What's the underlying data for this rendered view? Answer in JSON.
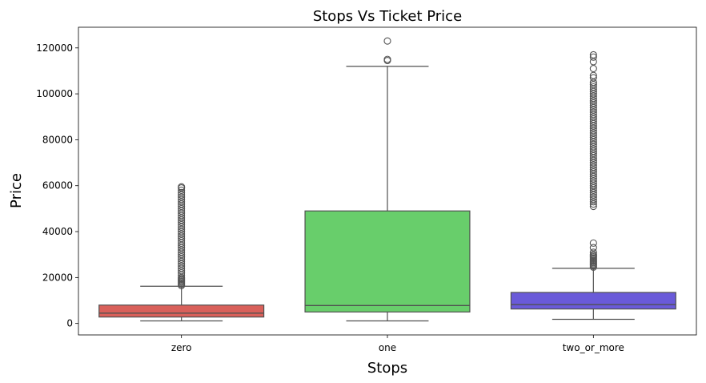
{
  "chart_data": {
    "type": "box",
    "title": "Stops Vs Ticket Price",
    "xlabel": "Stops",
    "ylabel": "Price",
    "ylim": [
      -5000,
      129000
    ],
    "yticks": [
      0,
      20000,
      40000,
      60000,
      80000,
      100000,
      120000
    ],
    "ytick_labels": [
      "0",
      "20000",
      "40000",
      "60000",
      "80000",
      "100000",
      "120000"
    ],
    "grid": false,
    "categories": [
      "zero",
      "one",
      "two_or_more"
    ],
    "boxes": [
      {
        "category": "zero",
        "color": "#d9605a",
        "whisker_low": 1100,
        "q1": 2800,
        "median": 4500,
        "q3": 8000,
        "whisker_high": 16200,
        "outliers": [
          16500,
          17000,
          17500,
          18000,
          18500,
          19000,
          19500,
          20000,
          21000,
          22000,
          23000,
          24000,
          25000,
          26000,
          27000,
          28000,
          29000,
          30000,
          31000,
          32000,
          33000,
          34000,
          35000,
          36000,
          37000,
          38000,
          39000,
          40000,
          41000,
          42000,
          43000,
          44000,
          45000,
          46000,
          47000,
          48000,
          49000,
          50000,
          51000,
          52000,
          53000,
          54000,
          55000,
          56000,
          57000,
          58000,
          59000,
          59500
        ]
      },
      {
        "category": "one",
        "color": "#68ce6b",
        "whisker_low": 1100,
        "q1": 5000,
        "median": 7800,
        "q3": 49000,
        "whisker_high": 112000,
        "outliers": [
          114500,
          115000,
          123000
        ]
      },
      {
        "category": "two_or_more",
        "color": "#6a5ad9",
        "whisker_low": 1800,
        "q1": 6300,
        "median": 8200,
        "q3": 13500,
        "whisker_high": 24000,
        "outliers": [
          24500,
          25000,
          25500,
          26000,
          26500,
          27000,
          27500,
          28000,
          28500,
          29000,
          29500,
          30000,
          31000,
          33000,
          35000,
          51000,
          52000,
          53000,
          54000,
          55000,
          56000,
          57000,
          58000,
          59000,
          60000,
          61000,
          62000,
          63000,
          64000,
          65000,
          66000,
          67000,
          68000,
          69000,
          70000,
          71000,
          72000,
          73000,
          74000,
          75000,
          76000,
          77000,
          78000,
          79000,
          80000,
          81000,
          82000,
          83000,
          84000,
          85000,
          86000,
          87000,
          88000,
          89000,
          90000,
          91000,
          92000,
          93000,
          94000,
          95000,
          96000,
          97000,
          98000,
          99000,
          100000,
          101000,
          102000,
          103000,
          104000,
          105000,
          107000,
          108000,
          111000,
          114000,
          116000,
          117000
        ]
      }
    ]
  }
}
